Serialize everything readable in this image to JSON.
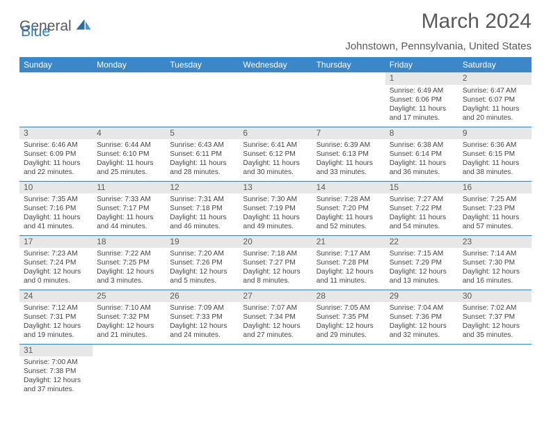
{
  "brand": {
    "word1": "General",
    "word2": "Blue"
  },
  "title": "March 2024",
  "location": "Johnstown, Pennsylvania, United States",
  "colors": {
    "header_bg": "#3b87c8",
    "header_fg": "#ffffff",
    "daynum_bg": "#e7e7e7",
    "daynum_fg": "#5b5b5b",
    "rule": "#3b7ab5",
    "brand_grey": "#595959",
    "brand_blue": "#3b7ab5",
    "text": "#444444",
    "page_bg": "#ffffff"
  },
  "dow": [
    "Sunday",
    "Monday",
    "Tuesday",
    "Wednesday",
    "Thursday",
    "Friday",
    "Saturday"
  ],
  "grid": {
    "rows": 6,
    "cols": 7,
    "cells": [
      [
        {
          "n": "",
          "sr": "",
          "ss": "",
          "dl": ""
        },
        {
          "n": "",
          "sr": "",
          "ss": "",
          "dl": ""
        },
        {
          "n": "",
          "sr": "",
          "ss": "",
          "dl": ""
        },
        {
          "n": "",
          "sr": "",
          "ss": "",
          "dl": ""
        },
        {
          "n": "",
          "sr": "",
          "ss": "",
          "dl": ""
        },
        {
          "n": "1",
          "sr": "Sunrise: 6:49 AM",
          "ss": "Sunset: 6:06 PM",
          "dl": "Daylight: 11 hours and 17 minutes."
        },
        {
          "n": "2",
          "sr": "Sunrise: 6:47 AM",
          "ss": "Sunset: 6:07 PM",
          "dl": "Daylight: 11 hours and 20 minutes."
        }
      ],
      [
        {
          "n": "3",
          "sr": "Sunrise: 6:46 AM",
          "ss": "Sunset: 6:09 PM",
          "dl": "Daylight: 11 hours and 22 minutes."
        },
        {
          "n": "4",
          "sr": "Sunrise: 6:44 AM",
          "ss": "Sunset: 6:10 PM",
          "dl": "Daylight: 11 hours and 25 minutes."
        },
        {
          "n": "5",
          "sr": "Sunrise: 6:43 AM",
          "ss": "Sunset: 6:11 PM",
          "dl": "Daylight: 11 hours and 28 minutes."
        },
        {
          "n": "6",
          "sr": "Sunrise: 6:41 AM",
          "ss": "Sunset: 6:12 PM",
          "dl": "Daylight: 11 hours and 30 minutes."
        },
        {
          "n": "7",
          "sr": "Sunrise: 6:39 AM",
          "ss": "Sunset: 6:13 PM",
          "dl": "Daylight: 11 hours and 33 minutes."
        },
        {
          "n": "8",
          "sr": "Sunrise: 6:38 AM",
          "ss": "Sunset: 6:14 PM",
          "dl": "Daylight: 11 hours and 36 minutes."
        },
        {
          "n": "9",
          "sr": "Sunrise: 6:36 AM",
          "ss": "Sunset: 6:15 PM",
          "dl": "Daylight: 11 hours and 38 minutes."
        }
      ],
      [
        {
          "n": "10",
          "sr": "Sunrise: 7:35 AM",
          "ss": "Sunset: 7:16 PM",
          "dl": "Daylight: 11 hours and 41 minutes."
        },
        {
          "n": "11",
          "sr": "Sunrise: 7:33 AM",
          "ss": "Sunset: 7:17 PM",
          "dl": "Daylight: 11 hours and 44 minutes."
        },
        {
          "n": "12",
          "sr": "Sunrise: 7:31 AM",
          "ss": "Sunset: 7:18 PM",
          "dl": "Daylight: 11 hours and 46 minutes."
        },
        {
          "n": "13",
          "sr": "Sunrise: 7:30 AM",
          "ss": "Sunset: 7:19 PM",
          "dl": "Daylight: 11 hours and 49 minutes."
        },
        {
          "n": "14",
          "sr": "Sunrise: 7:28 AM",
          "ss": "Sunset: 7:20 PM",
          "dl": "Daylight: 11 hours and 52 minutes."
        },
        {
          "n": "15",
          "sr": "Sunrise: 7:27 AM",
          "ss": "Sunset: 7:22 PM",
          "dl": "Daylight: 11 hours and 54 minutes."
        },
        {
          "n": "16",
          "sr": "Sunrise: 7:25 AM",
          "ss": "Sunset: 7:23 PM",
          "dl": "Daylight: 11 hours and 57 minutes."
        }
      ],
      [
        {
          "n": "17",
          "sr": "Sunrise: 7:23 AM",
          "ss": "Sunset: 7:24 PM",
          "dl": "Daylight: 12 hours and 0 minutes."
        },
        {
          "n": "18",
          "sr": "Sunrise: 7:22 AM",
          "ss": "Sunset: 7:25 PM",
          "dl": "Daylight: 12 hours and 3 minutes."
        },
        {
          "n": "19",
          "sr": "Sunrise: 7:20 AM",
          "ss": "Sunset: 7:26 PM",
          "dl": "Daylight: 12 hours and 5 minutes."
        },
        {
          "n": "20",
          "sr": "Sunrise: 7:18 AM",
          "ss": "Sunset: 7:27 PM",
          "dl": "Daylight: 12 hours and 8 minutes."
        },
        {
          "n": "21",
          "sr": "Sunrise: 7:17 AM",
          "ss": "Sunset: 7:28 PM",
          "dl": "Daylight: 12 hours and 11 minutes."
        },
        {
          "n": "22",
          "sr": "Sunrise: 7:15 AM",
          "ss": "Sunset: 7:29 PM",
          "dl": "Daylight: 12 hours and 13 minutes."
        },
        {
          "n": "23",
          "sr": "Sunrise: 7:14 AM",
          "ss": "Sunset: 7:30 PM",
          "dl": "Daylight: 12 hours and 16 minutes."
        }
      ],
      [
        {
          "n": "24",
          "sr": "Sunrise: 7:12 AM",
          "ss": "Sunset: 7:31 PM",
          "dl": "Daylight: 12 hours and 19 minutes."
        },
        {
          "n": "25",
          "sr": "Sunrise: 7:10 AM",
          "ss": "Sunset: 7:32 PM",
          "dl": "Daylight: 12 hours and 21 minutes."
        },
        {
          "n": "26",
          "sr": "Sunrise: 7:09 AM",
          "ss": "Sunset: 7:33 PM",
          "dl": "Daylight: 12 hours and 24 minutes."
        },
        {
          "n": "27",
          "sr": "Sunrise: 7:07 AM",
          "ss": "Sunset: 7:34 PM",
          "dl": "Daylight: 12 hours and 27 minutes."
        },
        {
          "n": "28",
          "sr": "Sunrise: 7:05 AM",
          "ss": "Sunset: 7:35 PM",
          "dl": "Daylight: 12 hours and 29 minutes."
        },
        {
          "n": "29",
          "sr": "Sunrise: 7:04 AM",
          "ss": "Sunset: 7:36 PM",
          "dl": "Daylight: 12 hours and 32 minutes."
        },
        {
          "n": "30",
          "sr": "Sunrise: 7:02 AM",
          "ss": "Sunset: 7:37 PM",
          "dl": "Daylight: 12 hours and 35 minutes."
        }
      ],
      [
        {
          "n": "31",
          "sr": "Sunrise: 7:00 AM",
          "ss": "Sunset: 7:38 PM",
          "dl": "Daylight: 12 hours and 37 minutes."
        },
        {
          "n": "",
          "sr": "",
          "ss": "",
          "dl": ""
        },
        {
          "n": "",
          "sr": "",
          "ss": "",
          "dl": ""
        },
        {
          "n": "",
          "sr": "",
          "ss": "",
          "dl": ""
        },
        {
          "n": "",
          "sr": "",
          "ss": "",
          "dl": ""
        },
        {
          "n": "",
          "sr": "",
          "ss": "",
          "dl": ""
        },
        {
          "n": "",
          "sr": "",
          "ss": "",
          "dl": ""
        }
      ]
    ]
  }
}
